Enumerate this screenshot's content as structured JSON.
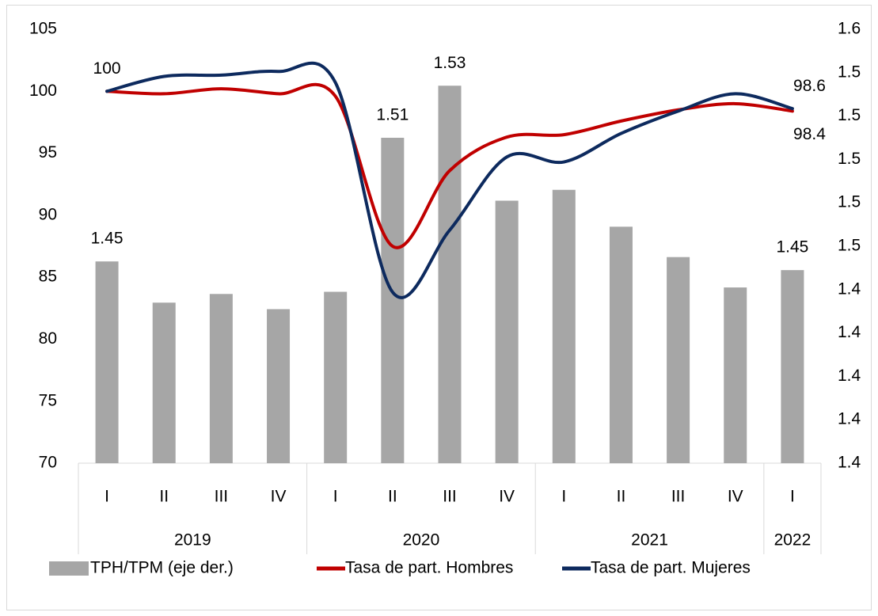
{
  "chart_data": {
    "type": "bar-line",
    "categories": [
      "I",
      "II",
      "III",
      "IV",
      "I",
      "II",
      "III",
      "IV",
      "I",
      "II",
      "III",
      "IV",
      "I"
    ],
    "year_groups": [
      {
        "name": "2019",
        "count": 4
      },
      {
        "name": "2020",
        "count": 4
      },
      {
        "name": "2021",
        "count": 4
      },
      {
        "name": "2022",
        "count": 1
      }
    ],
    "ylim": [
      70,
      105
    ],
    "yticks": [
      70,
      75,
      80,
      85,
      90,
      95,
      100,
      105
    ],
    "y2lim": [
      1.36,
      1.56
    ],
    "y2ticks": [
      {
        "value": 1.36,
        "label": "1.4"
      },
      {
        "value": 1.38,
        "label": "1.4"
      },
      {
        "value": 1.4,
        "label": "1.4"
      },
      {
        "value": 1.42,
        "label": "1.4"
      },
      {
        "value": 1.44,
        "label": "1.4"
      },
      {
        "value": 1.46,
        "label": "1.5"
      },
      {
        "value": 1.48,
        "label": "1.5"
      },
      {
        "value": 1.5,
        "label": "1.5"
      },
      {
        "value": 1.52,
        "label": "1.5"
      },
      {
        "value": 1.54,
        "label": "1.5"
      },
      {
        "value": 1.56,
        "label": "1.6"
      }
    ],
    "legend": "bottom",
    "grid": false,
    "series": [
      {
        "name": "TPH/TPM (eje der.)",
        "type": "bar",
        "axis": "y2",
        "color": "#a6a6a6",
        "values": [
          1.453,
          1.434,
          1.438,
          1.431,
          1.439,
          1.51,
          1.534,
          1.481,
          1.486,
          1.469,
          1.455,
          1.441,
          1.449
        ],
        "value_labels": [
          "1.45",
          null,
          null,
          null,
          null,
          "1.51",
          "1.53",
          null,
          null,
          null,
          null,
          null,
          "1.45"
        ]
      },
      {
        "name": "Tasa de part. Hombres",
        "type": "line",
        "color": "#c00000",
        "values": [
          100,
          99.8,
          100.2,
          99.8,
          99.6,
          87.5,
          93.6,
          96.3,
          96.5,
          97.6,
          98.5,
          99.0,
          98.4
        ],
        "value_labels": [
          "100",
          null,
          null,
          null,
          null,
          null,
          null,
          null,
          null,
          null,
          null,
          null,
          "98.4"
        ]
      },
      {
        "name": "Tasa de part. Mujeres",
        "type": "line",
        "color": "#0d2a5e",
        "values": [
          100,
          101.2,
          101.3,
          101.6,
          100.7,
          83.8,
          88.8,
          94.7,
          94.3,
          96.6,
          98.4,
          99.8,
          98.6
        ],
        "value_labels": [
          null,
          null,
          null,
          null,
          null,
          null,
          null,
          null,
          null,
          null,
          null,
          null,
          "98.6"
        ]
      }
    ]
  }
}
